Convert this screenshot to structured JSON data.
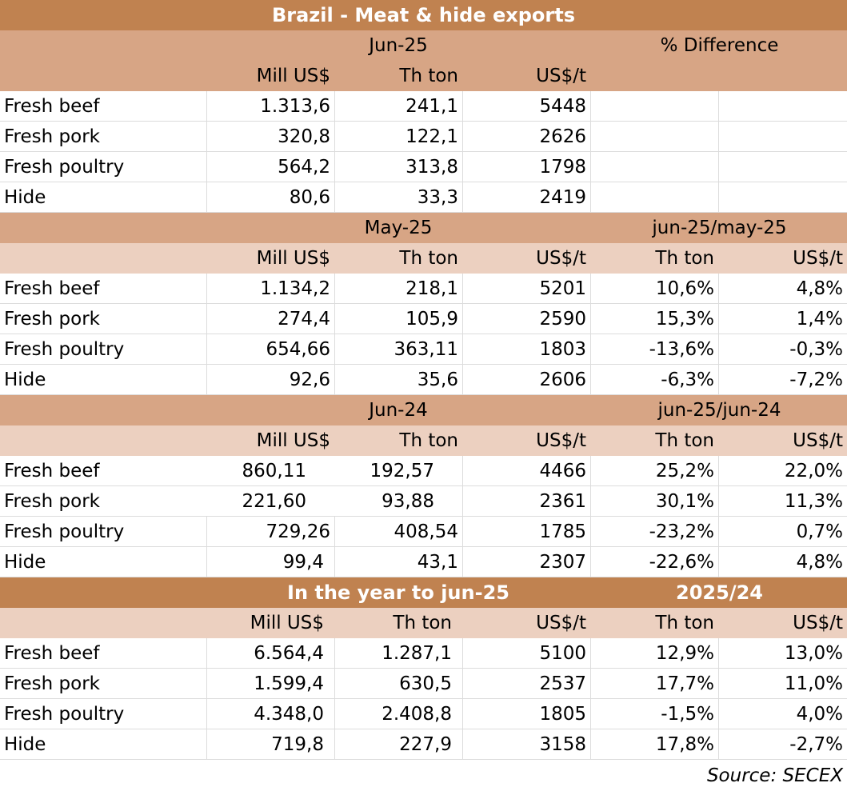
{
  "title": "Brazil - Meat & hide exports",
  "source": "Source: SECEX",
  "col_headers": {
    "mill": "Mill US$",
    "th": "Th ton",
    "price": "US$/t"
  },
  "diff_label": "% Difference",
  "sections": [
    {
      "period": "Jun-25",
      "rows": [
        {
          "name": "Fresh beef",
          "mill": "1.313,6",
          "th": "241,1",
          "price": "5448"
        },
        {
          "name": "Fresh pork",
          "mill": "320,8",
          "th": "122,1",
          "price": "2626"
        },
        {
          "name": "Fresh poultry",
          "mill": "564,2",
          "th": "313,8",
          "price": "1798"
        },
        {
          "name": "Hide",
          "mill": "80,6",
          "th": "33,3",
          "price": "2419"
        }
      ]
    },
    {
      "period": "May-25",
      "compare": "jun-25/may-25",
      "rows": [
        {
          "name": "Fresh beef",
          "mill": "1.134,2",
          "th": "218,1",
          "price": "5201",
          "d_th": "10,6%",
          "d_price": "4,8%"
        },
        {
          "name": "Fresh pork",
          "mill": "274,4",
          "th": "105,9",
          "price": "2590",
          "d_th": "15,3%",
          "d_price": "1,4%"
        },
        {
          "name": "Fresh poultry",
          "mill": "654,66",
          "th": "363,11",
          "price": "1803",
          "d_th": "-13,6%",
          "d_price": "-0,3%"
        },
        {
          "name": "Hide",
          "mill": "92,6",
          "th": "35,6",
          "price": "2606",
          "d_th": "-6,3%",
          "d_price": "-7,2%"
        }
      ]
    },
    {
      "period": "Jun-24",
      "compare": "jun-25/jun-24",
      "rows": [
        {
          "name": "Fresh beef",
          "mill": "860,11",
          "th": "192,57",
          "price": "4466",
          "d_th": "25,2%",
          "d_price": "22,0%"
        },
        {
          "name": "Fresh pork",
          "mill": "221,60",
          "th": "93,88",
          "price": "2361",
          "d_th": "30,1%",
          "d_price": "11,3%"
        },
        {
          "name": "Fresh poultry",
          "mill": "729,26",
          "th": "408,54",
          "price": "1785",
          "d_th": "-23,2%",
          "d_price": "0,7%"
        },
        {
          "name": "Hide",
          "mill": "99,4",
          "th": "43,1",
          "price": "2307",
          "d_th": "-22,6%",
          "d_price": "4,8%"
        }
      ]
    },
    {
      "period": "In the year to jun-25",
      "compare": "2025/24",
      "rows": [
        {
          "name": "Fresh beef",
          "mill": "6.564,4",
          "th": "1.287,1",
          "price": "5100",
          "d_th": "12,9%",
          "d_price": "13,0%"
        },
        {
          "name": "Fresh pork",
          "mill": "1.599,4",
          "th": "630,5",
          "price": "2537",
          "d_th": "17,7%",
          "d_price": "11,0%"
        },
        {
          "name": "Fresh poultry",
          "mill": "4.348,0",
          "th": "2.408,8",
          "price": "1805",
          "d_th": "-1,5%",
          "d_price": "4,0%"
        },
        {
          "name": "Hide",
          "mill": "719,8",
          "th": "227,9",
          "price": "3158",
          "d_th": "17,8%",
          "d_price": "-2,7%"
        }
      ]
    }
  ]
}
